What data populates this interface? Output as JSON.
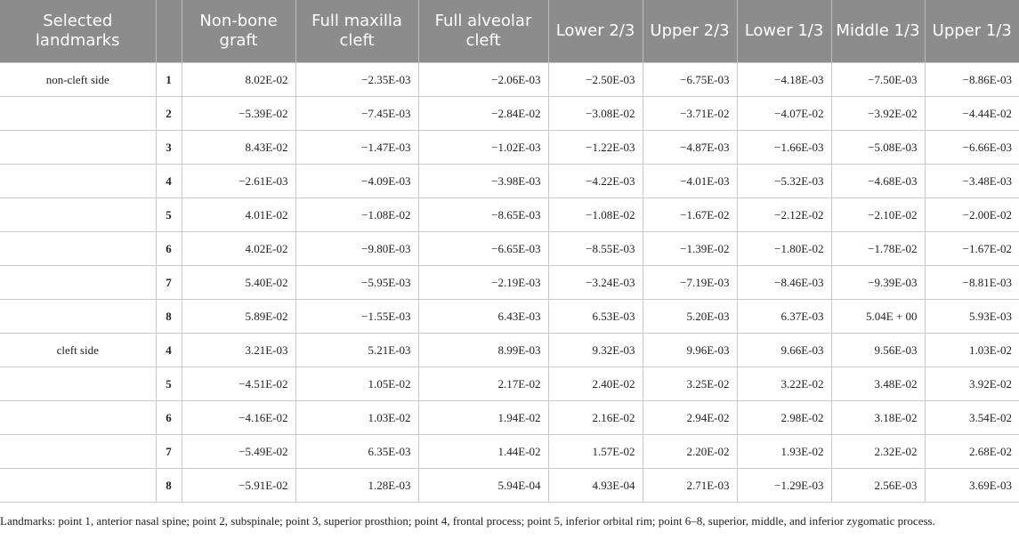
{
  "table": {
    "headers": [
      "Selected landmarks",
      "",
      "Non-bone graft",
      "Full maxilla cleft",
      "Full alveolar cleft",
      "Lower 2/3",
      "Upper 2/3",
      "Lower 1/3",
      "Middle 1/3",
      "Upper 1/3"
    ],
    "groups": [
      {
        "label": "non-cleft side",
        "rows": [
          {
            "point": "1",
            "values": [
              "8.02E-02",
              "−2.35E-03",
              "−2.06E-03",
              "−2.50E-03",
              "−6.75E-03",
              "−4.18E-03",
              "−7.50E-03",
              "−8.86E-03"
            ]
          },
          {
            "point": "2",
            "values": [
              "−5.39E-02",
              "−7.45E-03",
              "−2.84E-02",
              "−3.08E-02",
              "−3.71E-02",
              "−4.07E-02",
              "−3.92E-02",
              "−4.44E-02"
            ]
          },
          {
            "point": "3",
            "values": [
              "8.43E-02",
              "−1.47E-03",
              "−1.02E-03",
              "−1.22E-03",
              "−4.87E-03",
              "−1.66E-03",
              "−5.08E-03",
              "−6.66E-03"
            ]
          },
          {
            "point": "4",
            "values": [
              "−2.61E-03",
              "−4.09E-03",
              "−3.98E-03",
              "−4.22E-03",
              "−4.01E-03",
              "−5.32E-03",
              "−4.68E-03",
              "−3.48E-03"
            ]
          },
          {
            "point": "5",
            "values": [
              "4.01E-02",
              "−1.08E-02",
              "−8.65E-03",
              "−1.08E-02",
              "−1.67E-02",
              "−2.12E-02",
              "−2.10E-02",
              "−2.00E-02"
            ]
          },
          {
            "point": "6",
            "values": [
              "4.02E-02",
              "−9.80E-03",
              "−6.65E-03",
              "−8.55E-03",
              "−1.39E-02",
              "−1.80E-02",
              "−1.78E-02",
              "−1.67E-02"
            ]
          },
          {
            "point": "7",
            "values": [
              "5.40E-02",
              "−5.95E-03",
              "−2.19E-03",
              "−3.24E-03",
              "−7.19E-03",
              "−8.46E-03",
              "−9.39E-03",
              "−8.81E-03"
            ]
          },
          {
            "point": "8",
            "values": [
              "5.89E-02",
              "−1.55E-03",
              "6.43E-03",
              "6.53E-03",
              "5.20E-03",
              "6.37E-03",
              "5.04E + 00",
              "5.93E-03"
            ]
          }
        ]
      },
      {
        "label": "cleft side",
        "rows": [
          {
            "point": "4",
            "values": [
              "3.21E-03",
              "5.21E-03",
              "8.99E-03",
              "9.32E-03",
              "9.96E-03",
              "9.66E-03",
              "9.56E-03",
              "1.03E-02"
            ]
          },
          {
            "point": "5",
            "values": [
              "−4.51E-02",
              "1.05E-02",
              "2.17E-02",
              "2.40E-02",
              "3.25E-02",
              "3.22E-02",
              "3.48E-02",
              "3.92E-02"
            ]
          },
          {
            "point": "6",
            "values": [
              "−4.16E-02",
              "1.03E-02",
              "1.94E-02",
              "2.16E-02",
              "2.94E-02",
              "2.98E-02",
              "3.18E-02",
              "3.54E-02"
            ]
          },
          {
            "point": "7",
            "values": [
              "−5.49E-02",
              "6.35E-03",
              "1.44E-02",
              "1.57E-02",
              "2.20E-02",
              "1.93E-02",
              "2.32E-02",
              "2.68E-02"
            ]
          },
          {
            "point": "8",
            "values": [
              "−5.91E-02",
              "1.28E-03",
              "5.94E-04",
              "4.93E-04",
              "2.71E-03",
              "−1.29E-03",
              "2.56E-03",
              "3.69E-03"
            ]
          }
        ]
      }
    ]
  },
  "footnote": "Landmarks: point 1, anterior nasal spine; point 2, subspinale; point 3, superior prosthion; point 4, frontal process; point 5, inferior orbital rim; point 6–8, superior, middle, and inferior zygomatic process."
}
